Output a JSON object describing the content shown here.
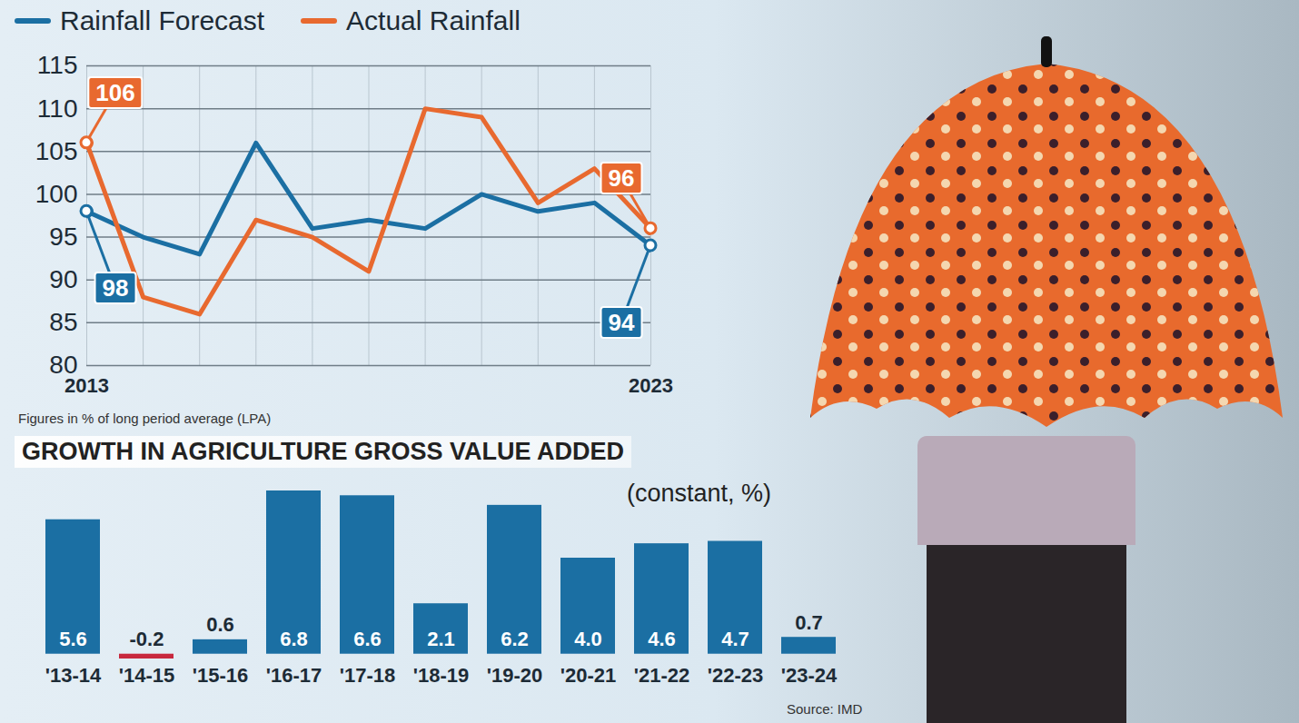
{
  "chart_data": [
    {
      "type": "line",
      "x": [
        2013,
        2014,
        2015,
        2016,
        2017,
        2018,
        2019,
        2020,
        2021,
        2022,
        2023
      ],
      "series": [
        {
          "name": "Rainfall Forecast",
          "color": "#1b6fa3",
          "values": [
            98,
            95,
            93,
            106,
            96,
            97,
            96,
            100,
            98,
            99,
            94
          ]
        },
        {
          "name": "Actual Rainfall",
          "color": "#e8692f",
          "values": [
            106,
            88,
            86,
            97,
            95,
            91,
            110,
            109,
            99,
            103,
            96
          ]
        }
      ],
      "xlim": [
        2013,
        2023
      ],
      "xticks": [
        2013,
        2023
      ],
      "ylim": [
        80,
        115
      ],
      "yticks": [
        80,
        85,
        90,
        95,
        100,
        105,
        110,
        115
      ],
      "grid": true,
      "legend": "top",
      "caption": "Figures in % of long period average (LPA)",
      "annotations": [
        {
          "x": 2013,
          "y": 106,
          "text": "106",
          "series": "Actual Rainfall"
        },
        {
          "x": 2013,
          "y": 98,
          "text": "98",
          "series": "Rainfall Forecast"
        },
        {
          "x": 2023,
          "y": 96,
          "text": "96",
          "series": "Actual Rainfall"
        },
        {
          "x": 2023,
          "y": 94,
          "text": "94",
          "series": "Rainfall Forecast"
        }
      ]
    },
    {
      "type": "bar",
      "title": "GROWTH IN AGRICULTURE GROSS VALUE ADDED",
      "subtitle": "(constant, %)",
      "categories": [
        "'13-14",
        "'14-15",
        "'15-16",
        "'16-17",
        "'17-18",
        "'18-19",
        "'19-20",
        "'20-21",
        "'21-22",
        "'22-23",
        "'23-24"
      ],
      "values": [
        5.6,
        -0.2,
        0.6,
        6.8,
        6.6,
        2.1,
        6.2,
        4.0,
        4.6,
        4.7,
        0.7
      ],
      "value_labels": [
        "5.6",
        "-0.2",
        "0.6",
        "6.8",
        "6.6",
        "2.1",
        "6.2",
        "4.0",
        "4.6",
        "4.7",
        "0.7"
      ],
      "colors": [
        "#1b6fa3",
        "#c8283e",
        "#1b6fa3",
        "#1b6fa3",
        "#1b6fa3",
        "#1b6fa3",
        "#1b6fa3",
        "#1b6fa3",
        "#1b6fa3",
        "#1b6fa3",
        "#1b6fa3"
      ],
      "data_labels": true,
      "tick_labels": "x",
      "source": "Source: IMD"
    }
  ]
}
